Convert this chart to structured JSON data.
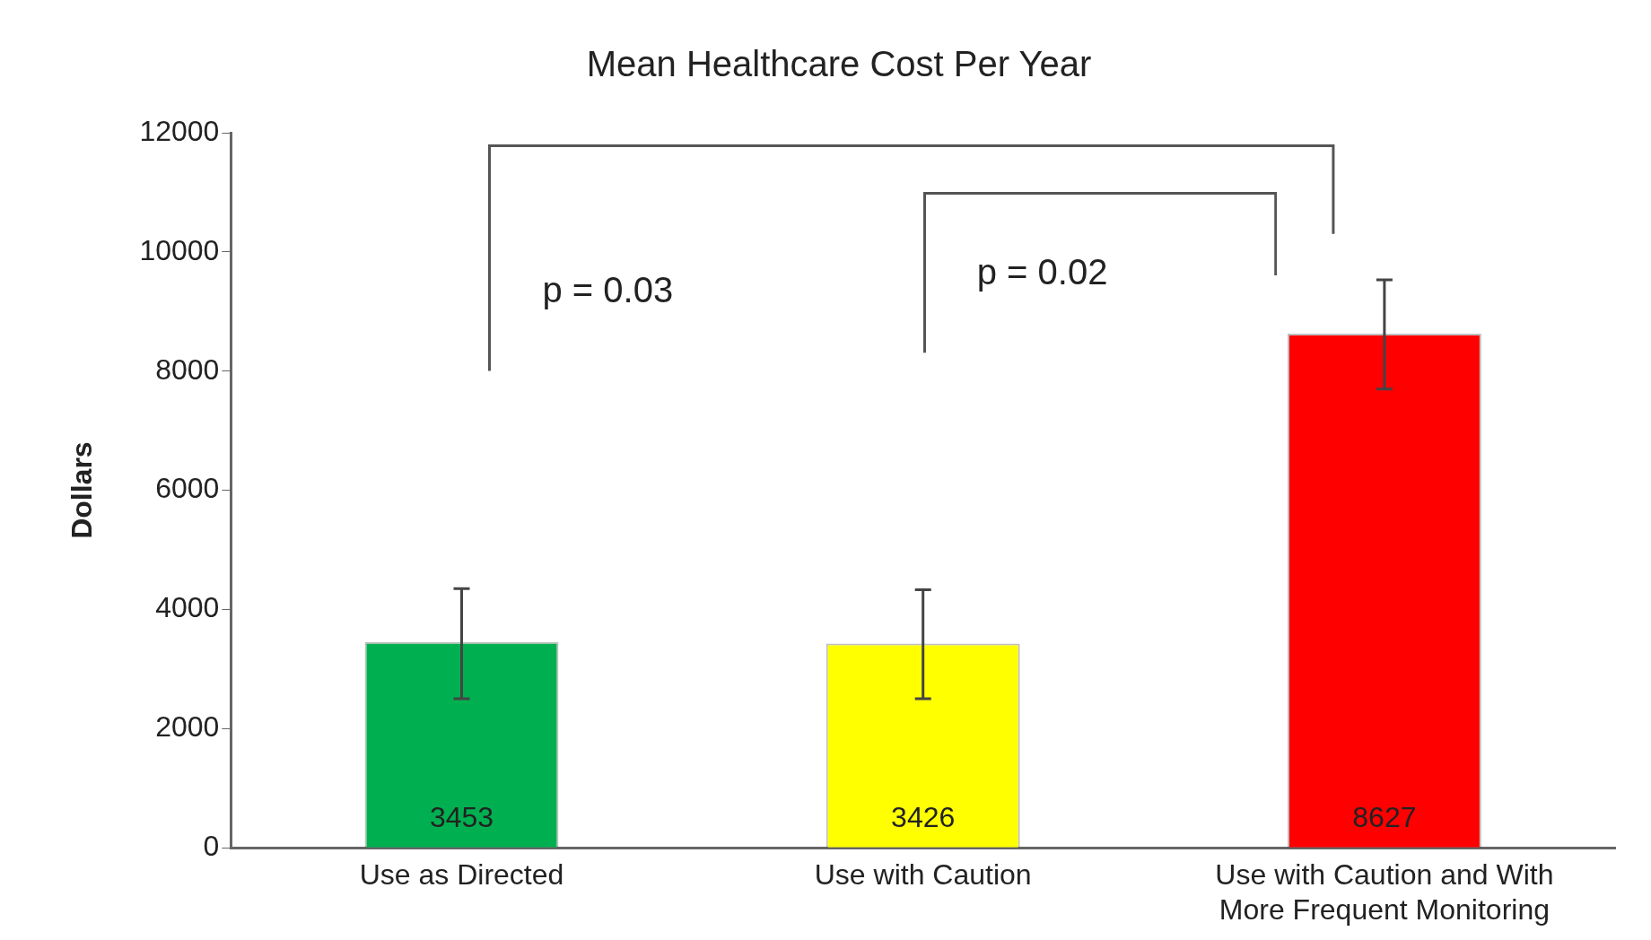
{
  "chart_data": {
    "type": "bar",
    "title": "Mean Healthcare Cost Per Year",
    "ylabel": "Dollars",
    "categories": [
      "Use as Directed",
      "Use with Caution",
      "Use with Caution and With More Frequent Monitoring"
    ],
    "values": [
      3453,
      3426,
      8627
    ],
    "colors": [
      "#00b050",
      "#ffff00",
      "#ff0000"
    ],
    "errors": [
      [
        2500,
        4350
      ],
      [
        2500,
        4330
      ],
      [
        7700,
        9530
      ]
    ],
    "data_labels": true,
    "ylim": [
      0,
      12000
    ],
    "yticks": [
      0,
      2000,
      4000,
      6000,
      8000,
      10000,
      12000
    ],
    "grid": false,
    "legend": false,
    "annotations": [
      "p = 0.03",
      "p = 0.02"
    ]
  }
}
